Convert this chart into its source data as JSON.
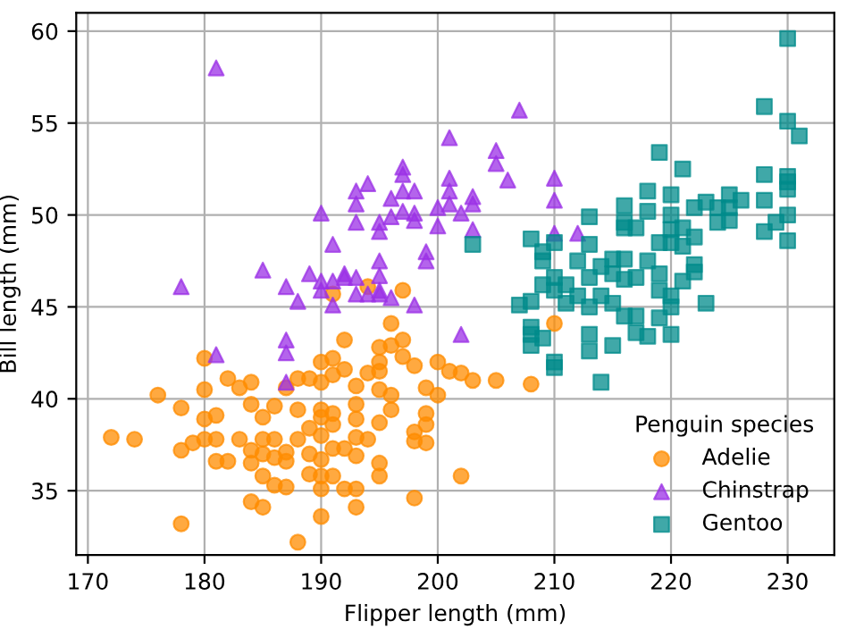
{
  "chart_data": {
    "type": "scatter",
    "xlabel": "Flipper length (mm)",
    "ylabel": "Bill length (mm)",
    "legend_title": "Penguin species",
    "legend": "bottom right",
    "grid": true,
    "xlim": [
      169,
      234
    ],
    "ylim": [
      31.5,
      61
    ],
    "xticks": [
      170,
      180,
      190,
      200,
      210,
      220,
      230
    ],
    "yticks": [
      35,
      40,
      45,
      50,
      55,
      60
    ],
    "series": [
      {
        "name": "Adelie",
        "color": "#ff8c00",
        "marker": "circle",
        "x": [
          191,
          194,
          197,
          210,
          196,
          192,
          195,
          196,
          197,
          197,
          190,
          191,
          195,
          198,
          200,
          201,
          202,
          203,
          205,
          208,
          180,
          182,
          184,
          183,
          187,
          188,
          189,
          190,
          191,
          192,
          194,
          195,
          195,
          193,
          196,
          199,
          200,
          176,
          180,
          178,
          184,
          186,
          188,
          190,
          191,
          193,
          196,
          199,
          180,
          181,
          185,
          189,
          190,
          191,
          193,
          195,
          198,
          199,
          172,
          174,
          178,
          179,
          180,
          181,
          183,
          185,
          186,
          188,
          190,
          192,
          193,
          194,
          198,
          199,
          184,
          185,
          187,
          189,
          191,
          181,
          182,
          184,
          186,
          187,
          190,
          193,
          195,
          185,
          189,
          190,
          191,
          195,
          202,
          186,
          187,
          190,
          192,
          193,
          198,
          184,
          185,
          190,
          193,
          178,
          188
        ],
        "values": [
          45.7,
          46.1,
          45.9,
          44.1,
          44.1,
          43.2,
          42.8,
          42.9,
          43.2,
          42.3,
          42.0,
          42.2,
          42.0,
          41.8,
          42.0,
          41.5,
          41.4,
          41.0,
          41.0,
          40.8,
          42.2,
          41.1,
          40.9,
          40.6,
          40.6,
          41.1,
          41.1,
          40.9,
          41.3,
          41.6,
          41.4,
          41.5,
          40.5,
          40.7,
          40.2,
          40.6,
          40.2,
          40.2,
          40.5,
          39.5,
          39.7,
          39.6,
          39.4,
          39.4,
          39.2,
          39.7,
          39.4,
          39.2,
          38.9,
          39.1,
          39.0,
          38.4,
          39.0,
          38.6,
          38.9,
          38.7,
          38.2,
          38.6,
          37.9,
          37.8,
          37.2,
          37.6,
          37.8,
          37.8,
          37.8,
          37.8,
          37.8,
          37.8,
          38.0,
          37.3,
          37.9,
          37.8,
          37.7,
          37.6,
          37.2,
          37.0,
          37.1,
          37.0,
          37.3,
          36.6,
          36.6,
          36.5,
          36.8,
          36.6,
          36.7,
          36.9,
          36.5,
          35.8,
          35.9,
          35.8,
          35.8,
          35.8,
          35.8,
          35.3,
          35.2,
          35.1,
          35.1,
          35.1,
          34.6,
          34.4,
          34.1,
          33.6,
          34.1,
          33.2,
          32.2
        ]
      },
      {
        "name": "Chinstrap",
        "color": "#9b30e6",
        "marker": "triangle",
        "x": [
          181,
          207,
          201,
          205,
          205,
          206,
          197,
          197,
          193,
          194,
          196,
          197,
          198,
          201,
          201,
          201,
          203,
          203,
          210,
          210,
          190,
          193,
          193,
          195,
          195,
          196,
          197,
          198,
          198,
          200,
          200,
          202,
          203,
          210,
          212,
          191,
          199,
          199,
          195,
          185,
          189,
          190,
          190,
          191,
          192,
          192,
          193,
          195,
          187,
          178,
          188,
          191,
          193,
          194,
          195,
          195,
          196,
          198,
          202,
          181,
          187,
          187,
          187
        ],
        "values": [
          58.0,
          55.7,
          54.2,
          53.5,
          52.8,
          51.9,
          52.6,
          52.2,
          51.3,
          51.7,
          50.9,
          51.3,
          51.3,
          52.0,
          51.3,
          50.6,
          51.0,
          50.6,
          52.0,
          50.8,
          50.1,
          50.6,
          49.6,
          49.6,
          49.1,
          49.9,
          50.2,
          50.1,
          49.7,
          50.4,
          49.4,
          50.1,
          49.2,
          49.0,
          49.0,
          48.4,
          48.0,
          47.5,
          47.5,
          47.0,
          46.8,
          46.4,
          45.9,
          46.4,
          46.8,
          46.6,
          46.6,
          46.7,
          46.1,
          46.1,
          45.3,
          45.1,
          45.7,
          45.7,
          45.9,
          45.7,
          45.5,
          45.1,
          43.5,
          42.4,
          43.2,
          42.5,
          40.9
        ]
      },
      {
        "name": "Gentoo",
        "color": "#008b8b",
        "marker": "square",
        "x": [
          230,
          228,
          230,
          231,
          219,
          221,
          228,
          230,
          230,
          230,
          218,
          220,
          216,
          218,
          220,
          222,
          223,
          224,
          225,
          225,
          226,
          228,
          224,
          225,
          228,
          229,
          230,
          230,
          213,
          216,
          216,
          217,
          220,
          221,
          222,
          219,
          220,
          221,
          208,
          209,
          210,
          213,
          212,
          214,
          215,
          216,
          218,
          222,
          222,
          209,
          210,
          211,
          213,
          215,
          216,
          217,
          219,
          221,
          209,
          210,
          212,
          213,
          214,
          215,
          216,
          217,
          219,
          219,
          220,
          220,
          223,
          207,
          208,
          211,
          208,
          208,
          208,
          209,
          210,
          210,
          213,
          213,
          214,
          215,
          217,
          218,
          220,
          203
        ],
        "values": [
          59.6,
          55.9,
          55.1,
          54.3,
          53.4,
          52.5,
          52.2,
          52.1,
          51.8,
          51.4,
          51.3,
          51.1,
          50.5,
          50.2,
          50.0,
          50.4,
          50.7,
          50.4,
          51.1,
          50.4,
          50.8,
          50.8,
          49.6,
          49.7,
          49.1,
          49.6,
          50.0,
          48.6,
          49.9,
          49.6,
          49.3,
          49.3,
          49.2,
          49.3,
          48.8,
          48.5,
          48.5,
          48.3,
          48.7,
          48.0,
          48.5,
          48.4,
          47.5,
          47.2,
          47.6,
          47.6,
          47.5,
          47.3,
          46.9,
          47.5,
          46.6,
          46.2,
          46.6,
          46.8,
          46.5,
          46.6,
          46.8,
          46.4,
          46.2,
          45.9,
          45.6,
          45.0,
          45.6,
          45.2,
          44.5,
          44.5,
          44.4,
          45.9,
          45.6,
          45.0,
          45.2,
          45.1,
          45.3,
          45.2,
          43.9,
          43.5,
          42.9,
          43.3,
          42.0,
          41.7,
          43.5,
          42.6,
          40.9,
          42.9,
          43.6,
          43.4,
          43.5,
          48.4
        ]
      }
    ]
  }
}
